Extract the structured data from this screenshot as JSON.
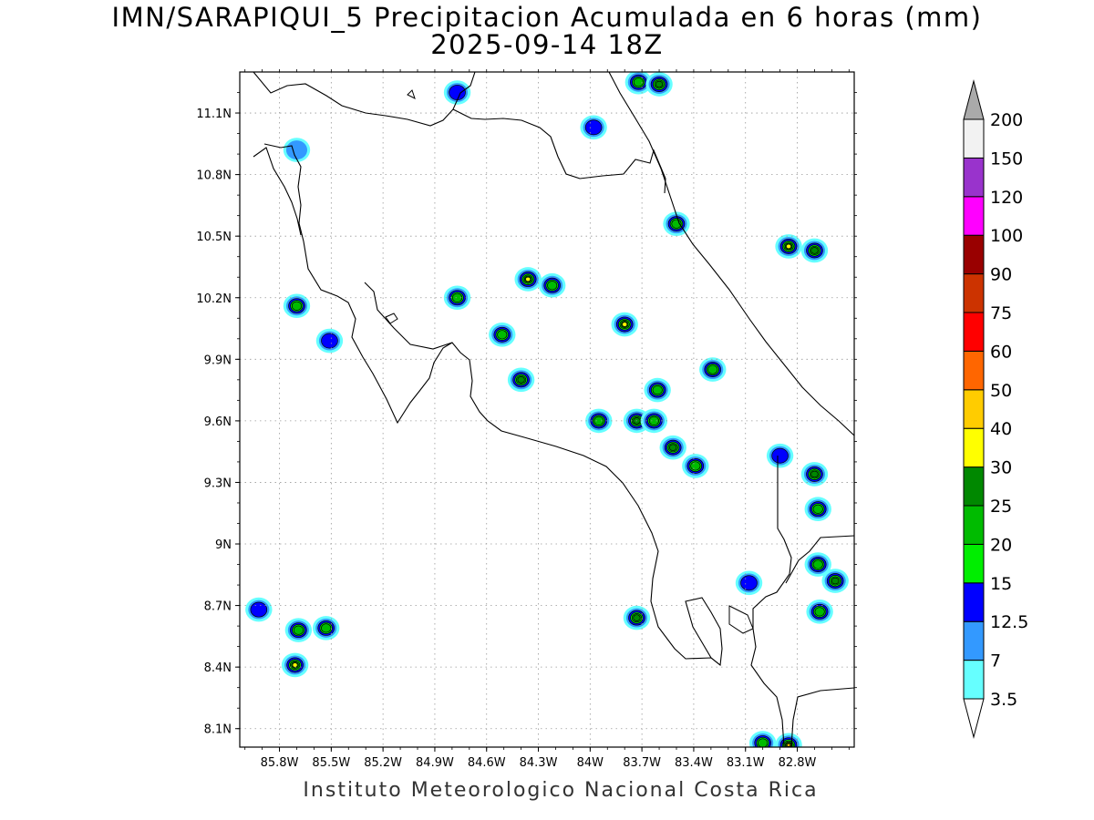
{
  "title": {
    "line1": "IMN/SARAPIQUI_5 Precipitacion Acumulada en 6 horas (mm)",
    "line2": "2025-09-14 18Z"
  },
  "footer": "Instituto Meteorologico Nacional Costa Rica",
  "axes": {
    "lon_ticks": [
      "85.8W",
      "85.5W",
      "85.2W",
      "84.9W",
      "84.6W",
      "84.3W",
      "84W",
      "83.7W",
      "83.4W",
      "83.1W",
      "82.8W"
    ],
    "lat_ticks": [
      "11.1N",
      "10.8N",
      "10.5N",
      "10.2N",
      "9.9N",
      "9.6N",
      "9.3N",
      "9N",
      "8.7N",
      "8.4N",
      "8.1N"
    ],
    "lon_range": [
      -86.03,
      -82.47
    ],
    "lat_range": [
      8.01,
      11.3
    ],
    "grid": "dotted"
  },
  "colorbar": {
    "labels": [
      "3.5",
      "7",
      "12.5",
      "15",
      "20",
      "25",
      "30",
      "40",
      "50",
      "60",
      "75",
      "90",
      "100",
      "120",
      "150",
      "200"
    ],
    "colors": [
      "#66ffff",
      "#3399ff",
      "#0000ff",
      "#00ee00",
      "#00bb00",
      "#008800",
      "#ffff00",
      "#ffcc00",
      "#ff6600",
      "#ff0000",
      "#cc3300",
      "#990000",
      "#ff00ff",
      "#9933cc",
      "#f2f2f2",
      "#aaaaaa"
    ]
  },
  "precip_cells": [
    {
      "lon": -85.7,
      "lat": 10.16,
      "max": 20
    },
    {
      "lon": -85.51,
      "lat": 9.99,
      "max": 12.5
    },
    {
      "lon": -85.7,
      "lat": 10.92,
      "max": 7
    },
    {
      "lon": -84.77,
      "lat": 11.2,
      "max": 12.5
    },
    {
      "lon": -83.98,
      "lat": 11.03,
      "max": 12.5
    },
    {
      "lon": -83.72,
      "lat": 11.25,
      "max": 20
    },
    {
      "lon": -83.6,
      "lat": 11.24,
      "max": 25
    },
    {
      "lon": -83.5,
      "lat": 10.56,
      "max": 20
    },
    {
      "lon": -82.85,
      "lat": 10.45,
      "max": 30
    },
    {
      "lon": -82.7,
      "lat": 10.43,
      "max": 25
    },
    {
      "lon": -84.36,
      "lat": 10.29,
      "max": 30
    },
    {
      "lon": -84.22,
      "lat": 10.26,
      "max": 20
    },
    {
      "lon": -84.77,
      "lat": 10.2,
      "max": 20
    },
    {
      "lon": -84.51,
      "lat": 10.02,
      "max": 20
    },
    {
      "lon": -83.8,
      "lat": 10.07,
      "max": 30
    },
    {
      "lon": -84.4,
      "lat": 9.8,
      "max": 25
    },
    {
      "lon": -83.73,
      "lat": 9.6,
      "max": 25
    },
    {
      "lon": -83.61,
      "lat": 9.75,
      "max": 20
    },
    {
      "lon": -83.63,
      "lat": 9.6,
      "max": 20
    },
    {
      "lon": -83.52,
      "lat": 9.47,
      "max": 25
    },
    {
      "lon": -83.29,
      "lat": 9.85,
      "max": 20
    },
    {
      "lon": -83.39,
      "lat": 9.38,
      "max": 20
    },
    {
      "lon": -83.95,
      "lat": 9.6,
      "max": 20
    },
    {
      "lon": -82.9,
      "lat": 9.43,
      "max": 12.5
    },
    {
      "lon": -82.7,
      "lat": 9.34,
      "max": 25
    },
    {
      "lon": -82.68,
      "lat": 9.17,
      "max": 20
    },
    {
      "lon": -82.68,
      "lat": 8.9,
      "max": 20
    },
    {
      "lon": -82.58,
      "lat": 8.82,
      "max": 25
    },
    {
      "lon": -82.67,
      "lat": 8.67,
      "max": 20
    },
    {
      "lon": -83.73,
      "lat": 8.64,
      "max": 25
    },
    {
      "lon": -83.08,
      "lat": 8.81,
      "max": 12.5
    },
    {
      "lon": -85.69,
      "lat": 8.58,
      "max": 20
    },
    {
      "lon": -85.53,
      "lat": 8.59,
      "max": 20
    },
    {
      "lon": -85.71,
      "lat": 8.41,
      "max": 30
    },
    {
      "lon": -85.92,
      "lat": 8.68,
      "max": 12.5
    },
    {
      "lon": -82.85,
      "lat": 8.02,
      "max": 40
    },
    {
      "lon": -83.0,
      "lat": 8.03,
      "max": 20
    }
  ]
}
